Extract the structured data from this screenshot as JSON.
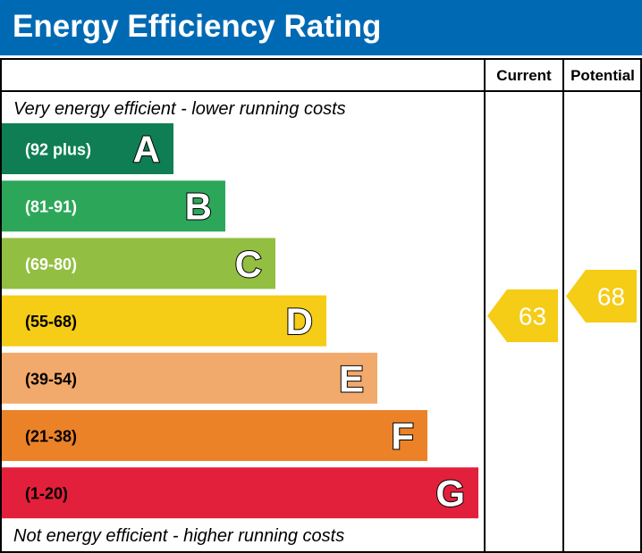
{
  "header": {
    "title": "Energy Efficiency Rating"
  },
  "columns": {
    "current": "Current",
    "potential": "Potential"
  },
  "captions": {
    "top": "Very energy efficient - lower running costs",
    "bottom": "Not energy efficient - higher running costs"
  },
  "chart_data": {
    "type": "bar",
    "title": "Energy Efficiency Rating",
    "bands": [
      {
        "letter": "A",
        "range": "(92 plus)",
        "min": 92,
        "max": 100,
        "color": "#0f7e55"
      },
      {
        "letter": "B",
        "range": "(81-91)",
        "min": 81,
        "max": 91,
        "color": "#2ca75a"
      },
      {
        "letter": "C",
        "range": "(69-80)",
        "min": 69,
        "max": 80,
        "color": "#92bf41"
      },
      {
        "letter": "D",
        "range": "(55-68)",
        "min": 55,
        "max": 68,
        "color": "#f5cc16"
      },
      {
        "letter": "E",
        "range": "(39-54)",
        "min": 39,
        "max": 54,
        "color": "#f2a96c"
      },
      {
        "letter": "F",
        "range": "(21-38)",
        "min": 21,
        "max": 38,
        "color": "#ec8228"
      },
      {
        "letter": "G",
        "range": "(1-20)",
        "min": 1,
        "max": 20,
        "color": "#e3203b"
      }
    ],
    "ratings": {
      "current": {
        "value": 63,
        "band": "D",
        "color": "#f5cc16"
      },
      "potential": {
        "value": 68,
        "band": "D",
        "color": "#f5cc16"
      }
    }
  }
}
